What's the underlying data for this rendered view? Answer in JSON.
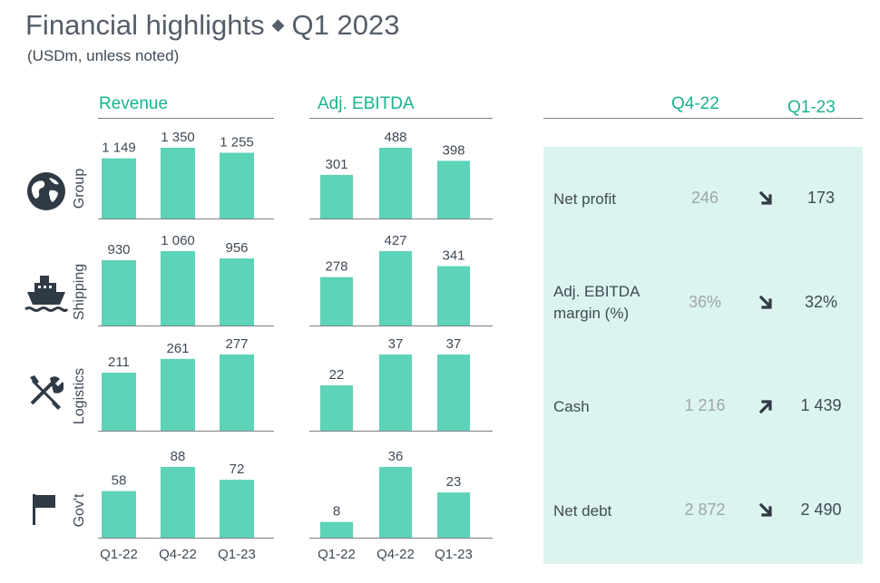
{
  "title": "Financial highlights",
  "title_separator": "◆",
  "period": "Q1 2023",
  "subtitle": "(USDm, unless noted)",
  "colors": {
    "accent": "#19b38f",
    "bar": "#5dd3b7",
    "panel": "#dcf4ef",
    "text": "#3f4a55",
    "muted": "#9ea5ab"
  },
  "segments": [
    {
      "label": "Group",
      "icon": "globe-icon"
    },
    {
      "label": "Shipping",
      "icon": "ship-icon"
    },
    {
      "label": "Logistics",
      "icon": "tools-icon"
    },
    {
      "label": "Gov't",
      "icon": "flag-icon"
    }
  ],
  "chart_data": [
    {
      "type": "bar",
      "title": "Revenue",
      "categories": [
        "Q1-22",
        "Q4-22",
        "Q1-23"
      ],
      "panels": [
        {
          "segment": "Group",
          "values": [
            1149,
            1350,
            1255
          ],
          "labels": [
            "1 149",
            "1 350",
            "1 255"
          ]
        },
        {
          "segment": "Shipping",
          "values": [
            930,
            1060,
            956
          ],
          "labels": [
            "930",
            "1 060",
            "956"
          ]
        },
        {
          "segment": "Logistics",
          "values": [
            211,
            261,
            277
          ],
          "labels": [
            "211",
            "261",
            "277"
          ]
        },
        {
          "segment": "Gov't",
          "values": [
            58,
            88,
            72
          ],
          "labels": [
            "58",
            "88",
            "72"
          ]
        }
      ]
    },
    {
      "type": "bar",
      "title": "Adj. EBITDA",
      "categories": [
        "Q1-22",
        "Q4-22",
        "Q1-23"
      ],
      "panels": [
        {
          "segment": "Group",
          "values": [
            301,
            488,
            398
          ],
          "labels": [
            "301",
            "488",
            "398"
          ]
        },
        {
          "segment": "Shipping",
          "values": [
            278,
            427,
            341
          ],
          "labels": [
            "278",
            "427",
            "341"
          ]
        },
        {
          "segment": "Logistics",
          "values": [
            22,
            37,
            37
          ],
          "labels": [
            "22",
            "37",
            "37"
          ]
        },
        {
          "segment": "Gov't",
          "values": [
            8,
            36,
            23
          ],
          "labels": [
            "8",
            "36",
            "23"
          ]
        }
      ]
    }
  ],
  "metrics_table": {
    "columns": [
      "Q4-22",
      "Q1-23"
    ],
    "rows": [
      {
        "label": [
          "Net profit"
        ],
        "prev": "246",
        "cur": "173",
        "trend": "down"
      },
      {
        "label": [
          "Adj. EBITDA",
          "margin (%)"
        ],
        "prev": "36%",
        "cur": "32%",
        "trend": "down"
      },
      {
        "label": [
          "Cash"
        ],
        "prev": "1 216",
        "cur": "1 439",
        "trend": "up"
      },
      {
        "label": [
          "Net debt"
        ],
        "prev": "2 872",
        "cur": "2 490",
        "trend": "down"
      }
    ]
  }
}
